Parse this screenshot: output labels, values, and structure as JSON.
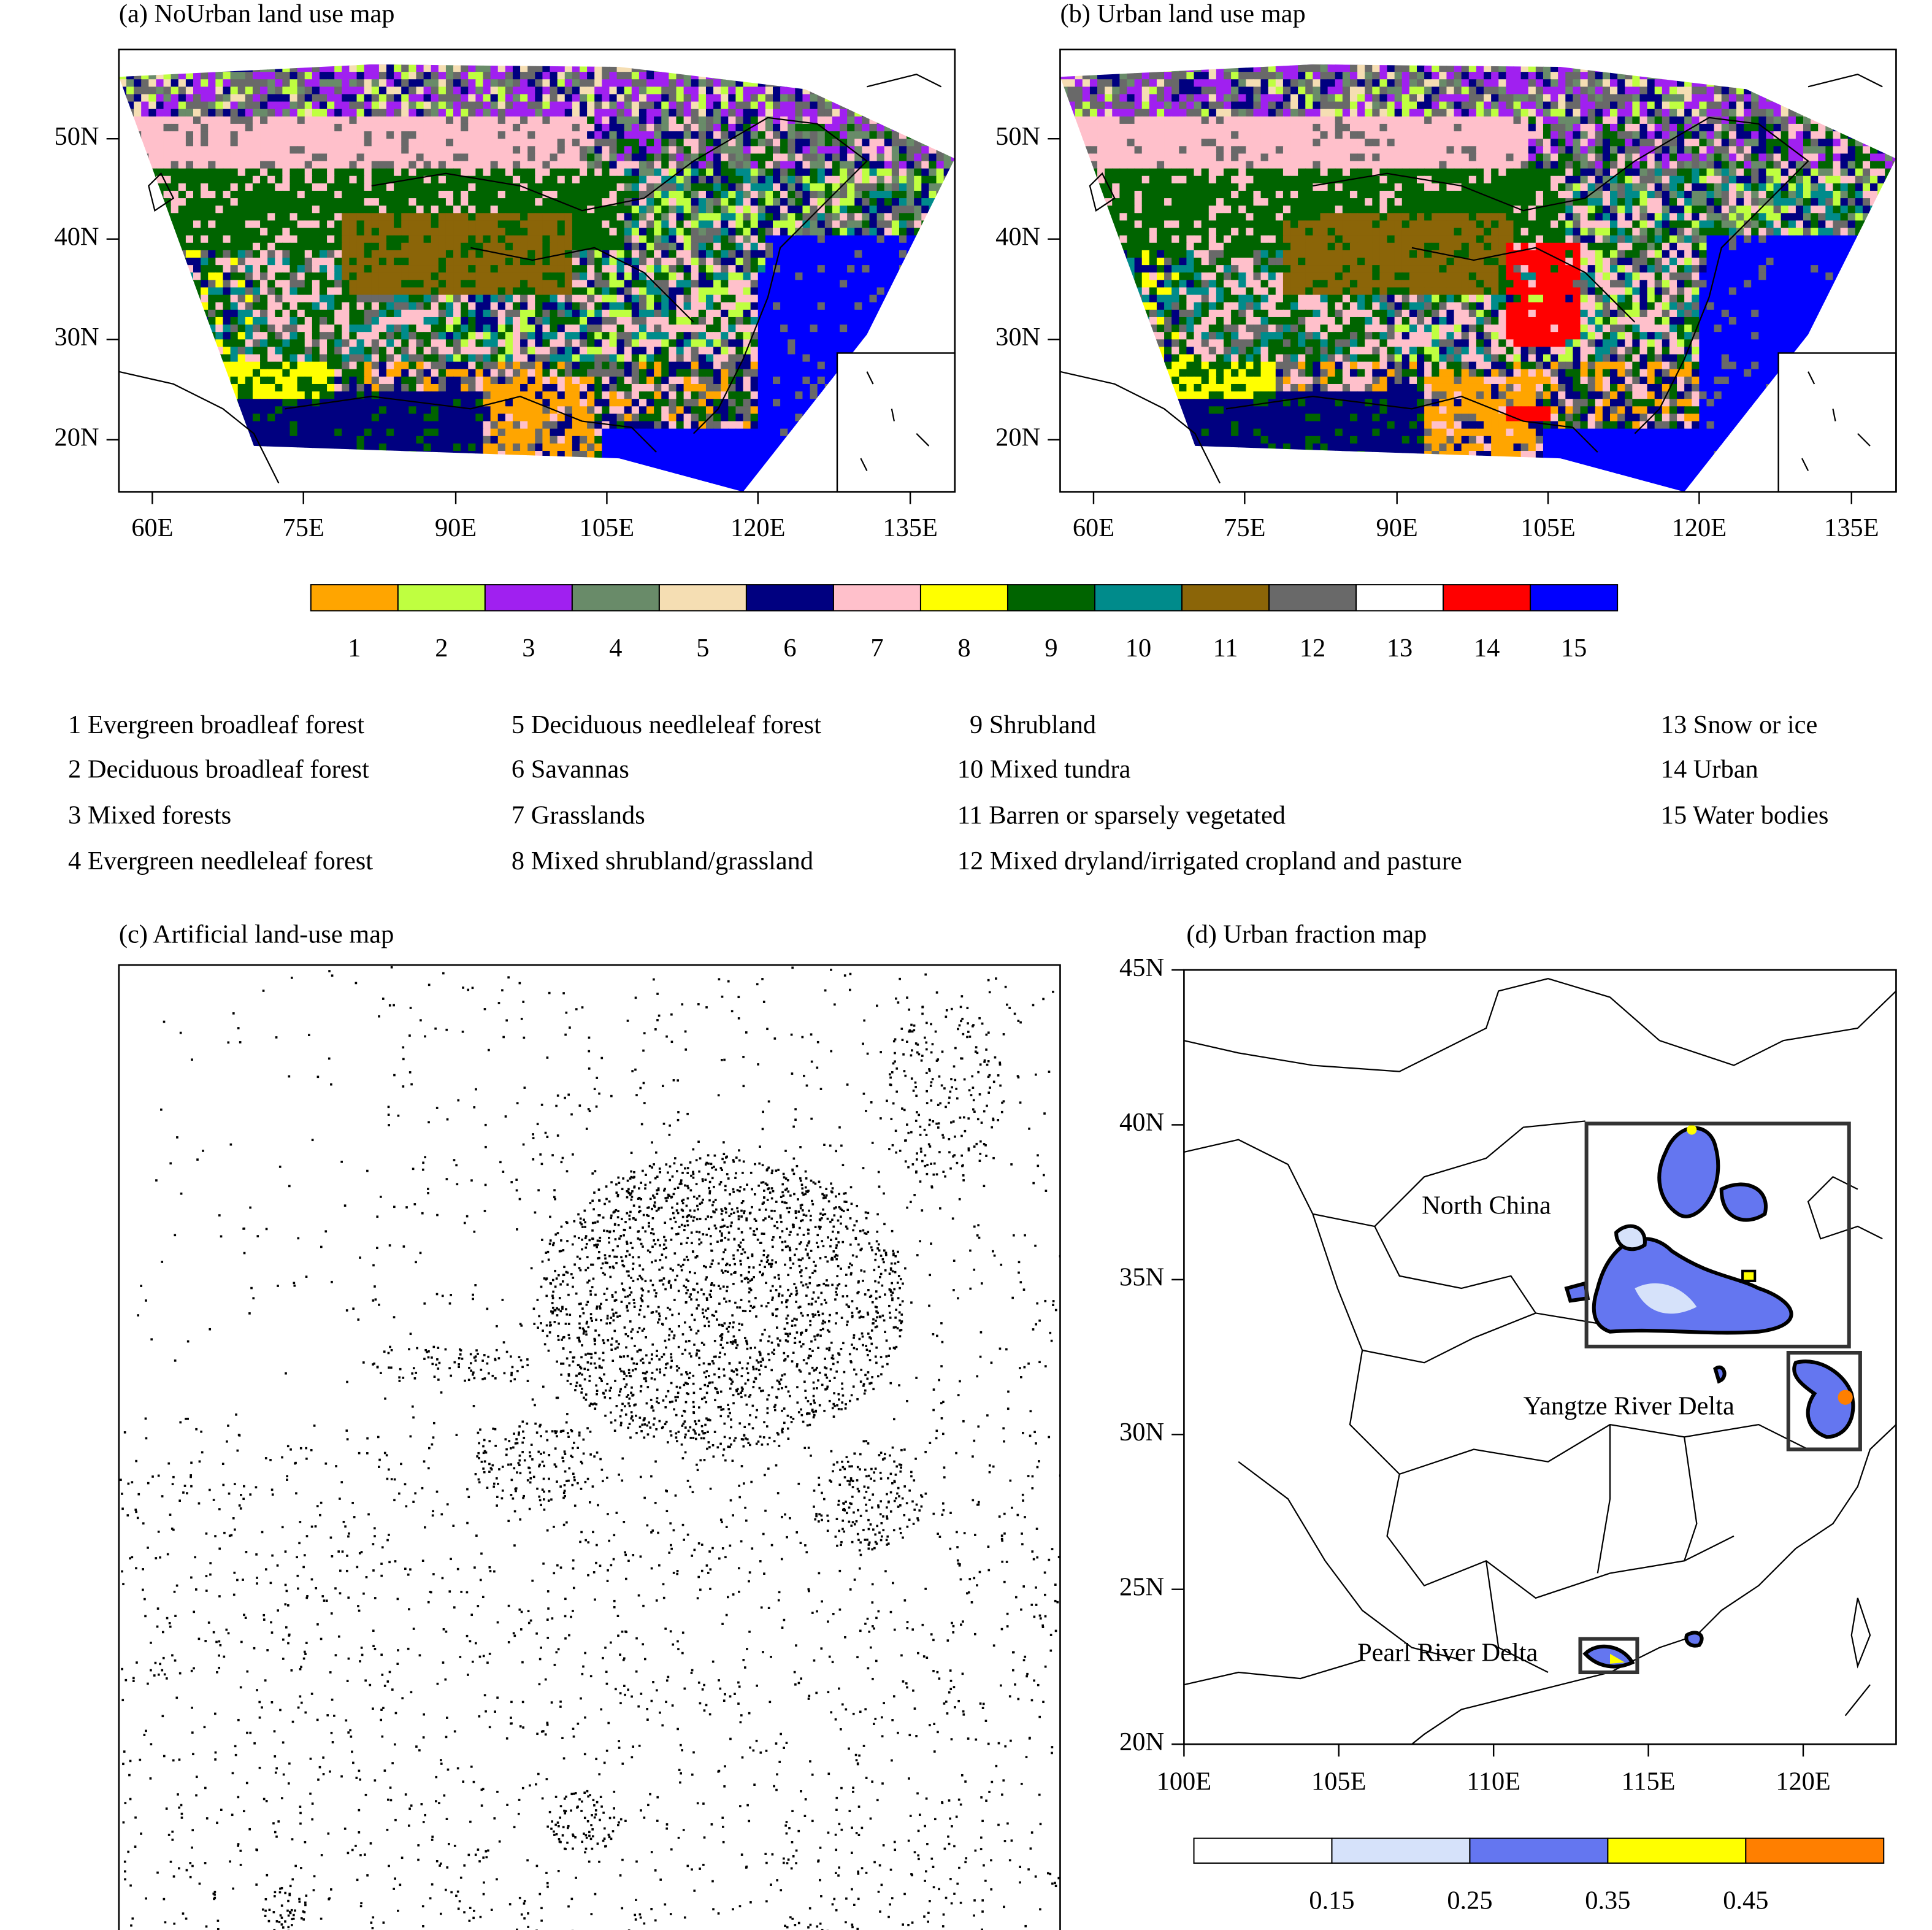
{
  "panels": [
    {
      "title": "(a) NoUrban land use map",
      "lat_ticks": [
        "50N",
        "40N",
        "30N",
        "20N"
      ],
      "lon_ticks": [
        "60E",
        "75E",
        "90E",
        "105E",
        "120E",
        "135E"
      ]
    },
    {
      "title": "(b) Urban land use map",
      "lat_ticks": [
        "50N",
        "40N",
        "30N",
        "20N"
      ],
      "lon_ticks": [
        "60E",
        "75E",
        "90E",
        "105E",
        "120E",
        "135E"
      ]
    },
    {
      "title": "(c) Artificial land-use map"
    },
    {
      "title": "(d) Urban fraction map",
      "lat_ticks": [
        "45N",
        "40N",
        "35N",
        "30N",
        "25N",
        "20N"
      ],
      "lon_ticks": [
        "100E",
        "105E",
        "110E",
        "115E",
        "120E"
      ],
      "regions": [
        "North China",
        "Yangtze River Delta",
        "Pearl River Delta"
      ]
    }
  ],
  "landuse_colorbar": {
    "colors": [
      "#ffa500",
      "#bfff40",
      "#a020f0",
      "#698b69",
      "#f5deb3",
      "#000080",
      "#ffc0cb",
      "#ffff00",
      "#006400",
      "#008b8b",
      "#8b6508",
      "#696969",
      "#ffffff",
      "#ff0000",
      "#0000ff"
    ],
    "labels": [
      1,
      2,
      3,
      4,
      5,
      6,
      7,
      8,
      9,
      10,
      11,
      12,
      13,
      14,
      15
    ]
  },
  "legend": [
    "1 Evergreen broadleaf forest",
    "2 Deciduous broadleaf forest",
    "3 Mixed forests",
    "4 Evergreen needleleaf forest",
    "5 Deciduous needleleaf forest",
    "6 Savannas",
    "7 Grasslands",
    "8 Mixed shrubland/grassland",
    "9 Shrubland",
    "10 Mixed tundra",
    "11 Barren or sparsely vegetated",
    "12 Mixed dryland/irrigated cropland and pasture",
    "13 Snow or ice",
    "14 Urban",
    "15 Water bodies"
  ],
  "urban_colorbar": {
    "colors": [
      "#ffffff",
      "#d6e2fa",
      "#6476f0",
      "#ffff00",
      "#ff7f00"
    ],
    "labels": [
      "0.15",
      "0.25",
      "0.35",
      "0.45"
    ]
  }
}
